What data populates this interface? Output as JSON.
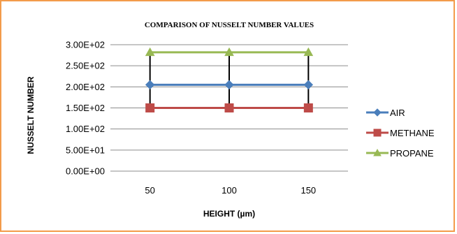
{
  "chart_data": {
    "type": "line",
    "title": "COMPARISON OF NUSSELT NUMBER VALUES",
    "xlabel": "HEIGHT (µm)",
    "ylabel": "NUSSELT NUMBER",
    "categories": [
      "50",
      "100",
      "150"
    ],
    "ylim": [
      0,
      300
    ],
    "ytick_values": [
      0,
      50,
      100,
      150,
      200,
      250,
      300
    ],
    "ytick_labels": [
      "0.00E+00",
      "5.00E+01",
      "1.00E+02",
      "1.50E+02",
      "2.00E+02",
      "2.50E+02",
      "3.00E+02"
    ],
    "grid": "horizontal",
    "legend_position": "right",
    "high_low_lines": true,
    "series": [
      {
        "name": "AIR",
        "values": [
          205,
          205,
          205
        ],
        "color": "#4a7ebb",
        "marker": "diamond"
      },
      {
        "name": "METHANE",
        "values": [
          150,
          150,
          150
        ],
        "color": "#be4b48",
        "marker": "square"
      },
      {
        "name": "PROPANE",
        "values": [
          282,
          282,
          282
        ],
        "color": "#98b954",
        "marker": "triangle"
      }
    ]
  }
}
